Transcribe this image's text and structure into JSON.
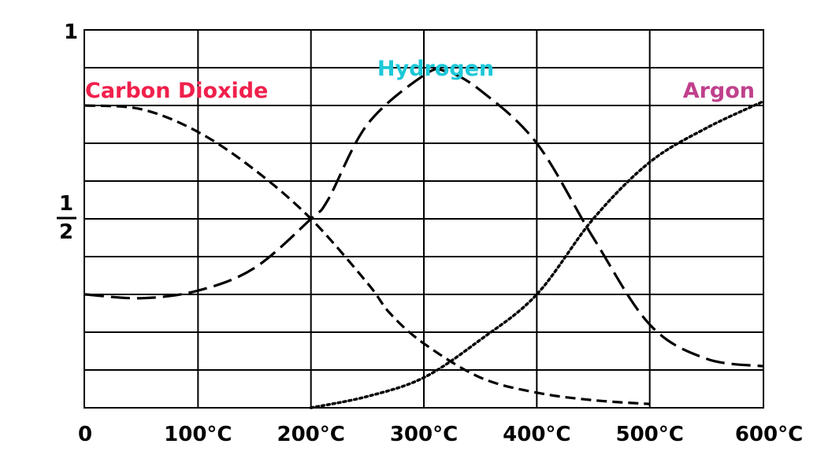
{
  "chart_data": {
    "type": "line",
    "title": "",
    "xlabel": "",
    "ylabel": "",
    "xlim": [
      0,
      600
    ],
    "ylim": [
      0,
      1
    ],
    "grid": true,
    "x_tick_labels": [
      "0",
      "100°C",
      "200°C",
      "300°C",
      "400°C",
      "500°C",
      "600°C"
    ],
    "y_tick_labels": {
      "one": "1",
      "half_numerator": "1",
      "half_denominator": "2"
    },
    "series": [
      {
        "name": "Carbon Dioxide",
        "color": "#f0204c",
        "dash": "dashed",
        "points": [
          [
            0,
            0.8
          ],
          [
            50,
            0.79
          ],
          [
            100,
            0.73
          ],
          [
            150,
            0.63
          ],
          [
            200,
            0.5
          ],
          [
            250,
            0.33
          ],
          [
            270,
            0.25
          ],
          [
            300,
            0.17
          ],
          [
            350,
            0.08
          ],
          [
            400,
            0.04
          ],
          [
            450,
            0.02
          ],
          [
            500,
            0.01
          ]
        ]
      },
      {
        "name": "Hydrogen",
        "color": "#1cc8d8",
        "dash": "long-dashed",
        "points": [
          [
            0,
            0.3
          ],
          [
            50,
            0.29
          ],
          [
            100,
            0.31
          ],
          [
            150,
            0.37
          ],
          [
            200,
            0.5
          ],
          [
            215,
            0.55
          ],
          [
            250,
            0.75
          ],
          [
            300,
            0.88
          ],
          [
            320,
            0.89
          ],
          [
            350,
            0.84
          ],
          [
            400,
            0.7
          ],
          [
            450,
            0.45
          ],
          [
            500,
            0.22
          ],
          [
            550,
            0.13
          ],
          [
            600,
            0.11
          ]
        ]
      },
      {
        "name": "Argon",
        "color": "#c0408c",
        "dash": "dotted",
        "points": [
          [
            200,
            0.0
          ],
          [
            250,
            0.03
          ],
          [
            300,
            0.08
          ],
          [
            350,
            0.18
          ],
          [
            400,
            0.3
          ],
          [
            450,
            0.5
          ],
          [
            500,
            0.65
          ],
          [
            550,
            0.74
          ],
          [
            600,
            0.81
          ]
        ]
      }
    ]
  }
}
